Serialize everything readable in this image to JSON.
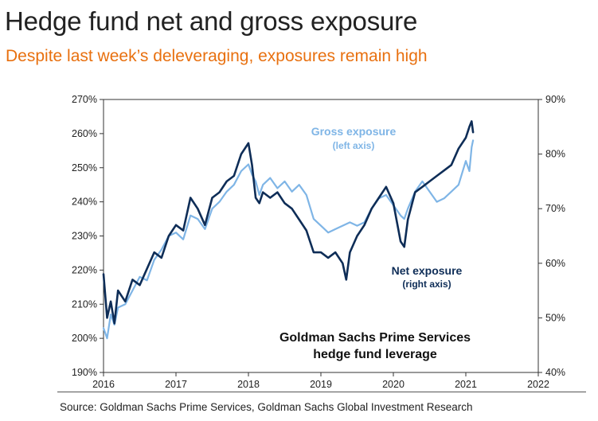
{
  "header": {
    "title": "Hedge fund net and gross exposure",
    "subtitle": "Despite last week’s deleveraging, exposures remain high"
  },
  "footer": {
    "source": "Source: Goldman Sachs Prime Services, Goldman Sachs Global Investment Research"
  },
  "colors": {
    "gross": "#7FB5E6",
    "net": "#0E2D57",
    "subtitle": "#E8700F",
    "axis": "#333333"
  },
  "chart_data": {
    "type": "line",
    "x_unit": "year",
    "xlim": [
      2016,
      2022
    ],
    "x_ticks": [
      "2016",
      "2017",
      "2018",
      "2019",
      "2020",
      "2021",
      "2022"
    ],
    "y_left": {
      "label": "",
      "ylim": [
        190,
        270
      ],
      "ticks": [
        "190%",
        "200%",
        "210%",
        "220%",
        "230%",
        "240%",
        "250%",
        "260%",
        "270%"
      ]
    },
    "y_right": {
      "label": "",
      "ylim": [
        40,
        90
      ],
      "ticks": [
        "40%",
        "50%",
        "60%",
        "70%",
        "80%",
        "90%"
      ]
    },
    "grid": false,
    "series": [
      {
        "name": "Gross exposure",
        "axis_note": "(left axis)",
        "axis": "left",
        "unit": "%",
        "points": [
          [
            2016.0,
            203
          ],
          [
            2016.05,
            200
          ],
          [
            2016.1,
            207
          ],
          [
            2016.15,
            204
          ],
          [
            2016.2,
            209
          ],
          [
            2016.3,
            210
          ],
          [
            2016.4,
            214
          ],
          [
            2016.5,
            218
          ],
          [
            2016.6,
            217
          ],
          [
            2016.7,
            223
          ],
          [
            2016.8,
            226
          ],
          [
            2016.9,
            230
          ],
          [
            2017.0,
            231
          ],
          [
            2017.1,
            229
          ],
          [
            2017.2,
            236
          ],
          [
            2017.3,
            235
          ],
          [
            2017.4,
            232
          ],
          [
            2017.5,
            238
          ],
          [
            2017.6,
            240
          ],
          [
            2017.7,
            243
          ],
          [
            2017.8,
            245
          ],
          [
            2017.9,
            249
          ],
          [
            2018.0,
            251
          ],
          [
            2018.05,
            248
          ],
          [
            2018.1,
            246
          ],
          [
            2018.15,
            242
          ],
          [
            2018.2,
            245
          ],
          [
            2018.3,
            247
          ],
          [
            2018.4,
            244
          ],
          [
            2018.5,
            246
          ],
          [
            2018.6,
            243
          ],
          [
            2018.7,
            245
          ],
          [
            2018.8,
            242
          ],
          [
            2018.9,
            235
          ],
          [
            2019.0,
            233
          ],
          [
            2019.1,
            231
          ],
          [
            2019.2,
            232
          ],
          [
            2019.3,
            233
          ],
          [
            2019.4,
            234
          ],
          [
            2019.5,
            233
          ],
          [
            2019.6,
            234
          ],
          [
            2019.7,
            238
          ],
          [
            2019.8,
            241
          ],
          [
            2019.9,
            242
          ],
          [
            2020.0,
            239
          ],
          [
            2020.1,
            236
          ],
          [
            2020.15,
            235
          ],
          [
            2020.2,
            238
          ],
          [
            2020.3,
            243
          ],
          [
            2020.4,
            246
          ],
          [
            2020.5,
            243
          ],
          [
            2020.6,
            240
          ],
          [
            2020.7,
            241
          ],
          [
            2020.8,
            243
          ],
          [
            2020.9,
            245
          ],
          [
            2021.0,
            252
          ],
          [
            2021.05,
            249
          ],
          [
            2021.08,
            256
          ],
          [
            2021.1,
            258
          ]
        ]
      },
      {
        "name": "Net exposure",
        "axis_note": "(right axis)",
        "axis": "right",
        "unit": "%",
        "points": [
          [
            2016.0,
            58
          ],
          [
            2016.05,
            50
          ],
          [
            2016.1,
            53
          ],
          [
            2016.15,
            49
          ],
          [
            2016.2,
            55
          ],
          [
            2016.3,
            53
          ],
          [
            2016.4,
            57
          ],
          [
            2016.5,
            56
          ],
          [
            2016.6,
            59
          ],
          [
            2016.7,
            62
          ],
          [
            2016.8,
            61
          ],
          [
            2016.9,
            65
          ],
          [
            2017.0,
            67
          ],
          [
            2017.1,
            66
          ],
          [
            2017.2,
            72
          ],
          [
            2017.3,
            70
          ],
          [
            2017.4,
            67
          ],
          [
            2017.5,
            72
          ],
          [
            2017.6,
            73
          ],
          [
            2017.7,
            75
          ],
          [
            2017.8,
            76
          ],
          [
            2017.9,
            80
          ],
          [
            2018.0,
            82
          ],
          [
            2018.05,
            78
          ],
          [
            2018.1,
            72
          ],
          [
            2018.15,
            71
          ],
          [
            2018.2,
            73
          ],
          [
            2018.3,
            72
          ],
          [
            2018.4,
            73
          ],
          [
            2018.5,
            71
          ],
          [
            2018.6,
            70
          ],
          [
            2018.7,
            68
          ],
          [
            2018.8,
            66
          ],
          [
            2018.9,
            62
          ],
          [
            2019.0,
            62
          ],
          [
            2019.1,
            61
          ],
          [
            2019.2,
            62
          ],
          [
            2019.3,
            60
          ],
          [
            2019.35,
            57
          ],
          [
            2019.4,
            62
          ],
          [
            2019.5,
            65
          ],
          [
            2019.6,
            67
          ],
          [
            2019.7,
            70
          ],
          [
            2019.8,
            72
          ],
          [
            2019.9,
            74
          ],
          [
            2020.0,
            71
          ],
          [
            2020.1,
            64
          ],
          [
            2020.15,
            63
          ],
          [
            2020.2,
            68
          ],
          [
            2020.3,
            73
          ],
          [
            2020.4,
            74
          ],
          [
            2020.5,
            75
          ],
          [
            2020.6,
            76
          ],
          [
            2020.7,
            77
          ],
          [
            2020.8,
            78
          ],
          [
            2020.9,
            81
          ],
          [
            2021.0,
            83
          ],
          [
            2021.05,
            85
          ],
          [
            2021.08,
            86
          ],
          [
            2021.1,
            84
          ]
        ]
      }
    ],
    "annotations": [
      {
        "id": "gross",
        "text": "Gross exposure",
        "sub": "(left axis)"
      },
      {
        "id": "net",
        "text": "Net exposure",
        "sub": "(right axis)"
      },
      {
        "id": "box",
        "lines": [
          "Goldman Sachs Prime Services",
          "hedge fund leverage"
        ]
      }
    ]
  }
}
